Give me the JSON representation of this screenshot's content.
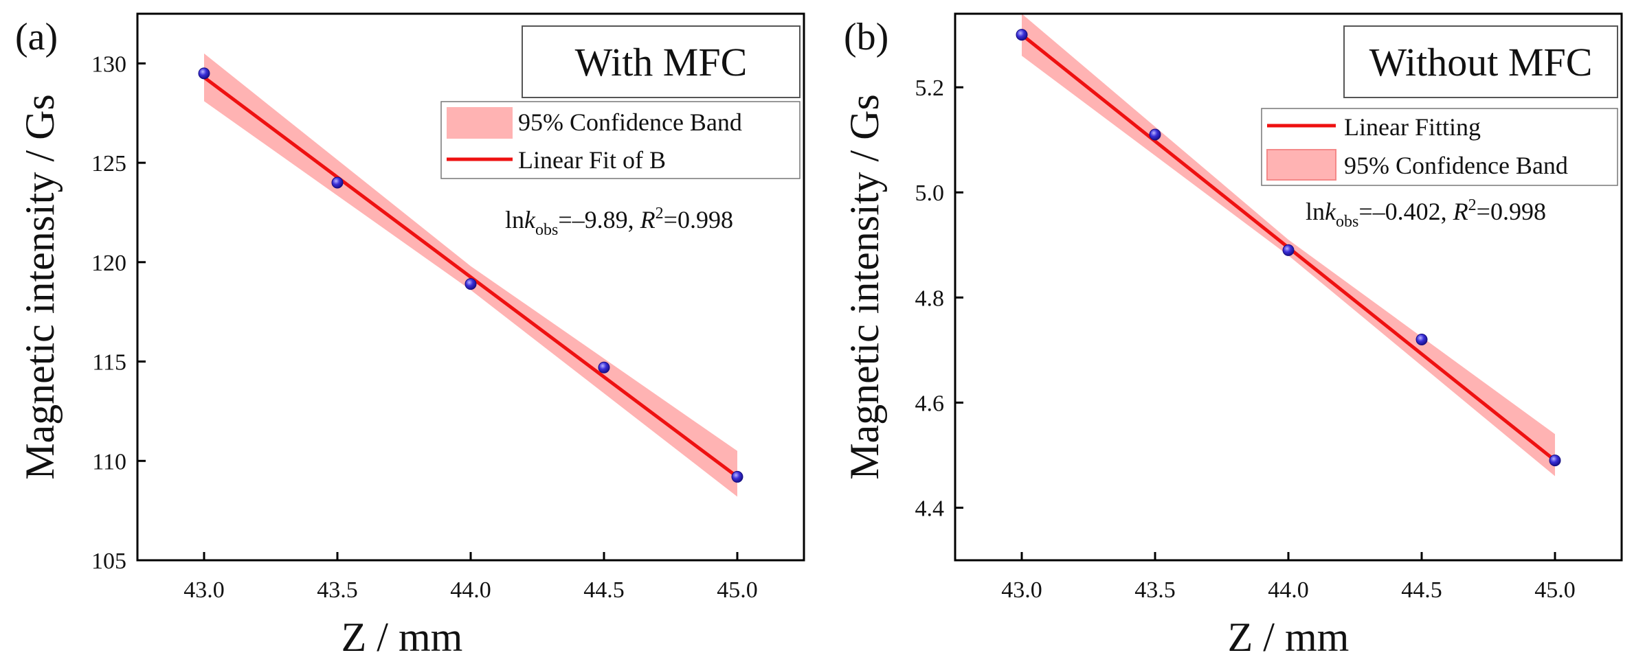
{
  "chart_data": [
    {
      "type": "scatter",
      "panel_label": "(a)",
      "box_title": "With MFC",
      "xlabel": "Z / mm",
      "ylabel": "Magnetic intensity / Gs",
      "xlim": [
        42.75,
        45.25
      ],
      "ylim": [
        105,
        132.5
      ],
      "xticks": [
        "43.0",
        "43.5",
        "44.0",
        "44.5",
        "45.0"
      ],
      "yticks": [
        "105",
        "110",
        "115",
        "120",
        "125",
        "130"
      ],
      "x": [
        43.0,
        43.5,
        44.0,
        44.5,
        45.0
      ],
      "y": [
        129.5,
        124.0,
        118.9,
        114.7,
        109.2
      ],
      "fit": {
        "x": [
          43.0,
          45.0
        ],
        "y": [
          129.3,
          109.2
        ]
      },
      "band": {
        "x": [
          43.0,
          44.0,
          45.0
        ],
        "lower": [
          128.1,
          118.6,
          108.2
        ],
        "upper": [
          130.5,
          119.8,
          110.5
        ]
      },
      "legend": [
        {
          "kind": "band",
          "label": "95% Confidence Band"
        },
        {
          "kind": "line",
          "label": "Linear Fit of B"
        }
      ],
      "stat_annotation": {
        "prefix": "ln",
        "k": "k",
        "sub": "obs",
        "lnk": "=–9.89, ",
        "r": "R",
        "sup": "2",
        "r2": "=0.998"
      }
    },
    {
      "type": "scatter",
      "panel_label": "(b)",
      "box_title": "Without MFC",
      "xlabel": "Z / mm",
      "ylabel": "Magnetic intensity / Gs",
      "xlim": [
        42.75,
        45.25
      ],
      "ylim": [
        4.3,
        5.34
      ],
      "xticks": [
        "43.0",
        "43.5",
        "44.0",
        "44.5",
        "45.0"
      ],
      "yticks": [
        "4.4",
        "4.6",
        "4.8",
        "5.0",
        "5.2"
      ],
      "x": [
        43.0,
        43.5,
        44.0,
        44.5,
        45.0
      ],
      "y": [
        5.3,
        5.11,
        4.89,
        4.72,
        4.49
      ],
      "fit": {
        "x": [
          43.0,
          45.0
        ],
        "y": [
          5.3,
          4.49
        ]
      },
      "band": {
        "x": [
          43.0,
          44.0,
          45.0
        ],
        "lower": [
          5.26,
          4.88,
          4.46
        ],
        "upper": [
          5.34,
          4.91,
          4.54
        ]
      },
      "legend": [
        {
          "kind": "line",
          "label": "Linear Fitting"
        },
        {
          "kind": "band",
          "label": "95% Confidence Band"
        }
      ],
      "stat_annotation": {
        "prefix": "ln",
        "k": "k",
        "sub": "obs",
        "lnk": "=–0.402, ",
        "r": "R",
        "sup": "2",
        "r2": "=0.998"
      }
    }
  ],
  "colors": {
    "fit_line": "#ee1111",
    "band_fill": "#ffb3b3",
    "band_legend_stroke": "#f48888",
    "point_fill": "#3a2fd8",
    "point_edge": "#150d80",
    "point_highlight": "#b9b4ff",
    "axis": "#000000",
    "text": "#111111"
  }
}
